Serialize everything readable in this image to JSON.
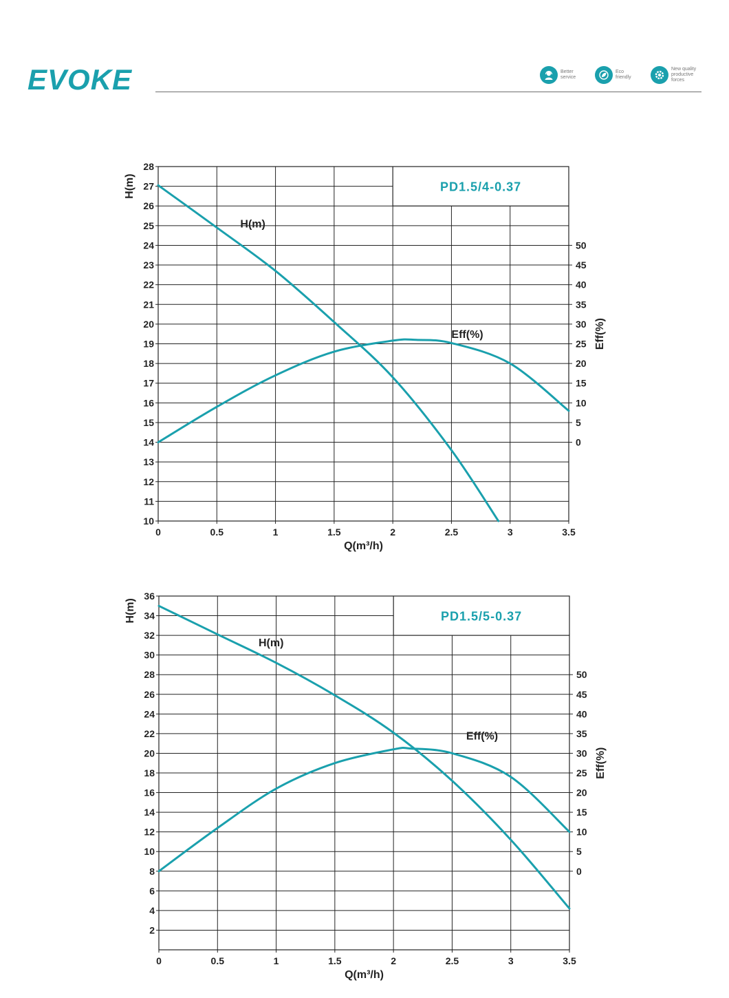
{
  "header": {
    "logo": "EVOKE",
    "badges": [
      {
        "icon": "headset-person-icon",
        "line1": "Better",
        "line2": "service",
        "line3": ""
      },
      {
        "icon": "eco-leaf-icon",
        "line1": "Eco",
        "line2": "friendly",
        "line3": ""
      },
      {
        "icon": "gear-icon",
        "line1": "New quality",
        "line2": "productive",
        "line3": "forces"
      }
    ]
  },
  "colors": {
    "accent": "#1aa0ad",
    "grid": "#222222",
    "text": "#222222"
  },
  "chart_data": [
    {
      "type": "line",
      "title": "PD1.5/4-0.37",
      "xlabel": "Q(m³/h)",
      "ylabel": "H(m)",
      "y2label": "Eff(%)",
      "xlim": [
        0,
        3.5
      ],
      "ylim": [
        10,
        28
      ],
      "y2ticks": [
        0,
        5,
        10,
        15,
        20,
        25,
        30,
        35,
        40,
        45,
        50
      ],
      "x_ticks": [
        "0",
        "0.5",
        "1",
        "1.5",
        "2",
        "2.5",
        "3",
        "3.5"
      ],
      "y_ticks": [
        "10",
        "11",
        "12",
        "13",
        "14",
        "15",
        "16",
        "17",
        "18",
        "19",
        "20",
        "21",
        "22",
        "23",
        "24",
        "25",
        "26",
        "27",
        "28"
      ],
      "grid": true,
      "series": [
        {
          "name": "H(m)",
          "axis": "left",
          "x": [
            0,
            0.5,
            1,
            1.5,
            2,
            2.5,
            2.9
          ],
          "y": [
            27.05,
            24.9,
            22.7,
            20.1,
            17.3,
            13.6,
            10
          ]
        },
        {
          "name": "Eff(%)",
          "axis": "right",
          "x": [
            0,
            0.5,
            1,
            1.5,
            2,
            2.2,
            2.5,
            3,
            3.5
          ],
          "y": [
            0,
            9,
            17,
            23,
            25.8,
            26,
            25.2,
            20,
            8
          ]
        }
      ]
    },
    {
      "type": "line",
      "title": "PD1.5/5-0.37",
      "xlabel": "Q(m³/h)",
      "ylabel": "H(m)",
      "y2label": "Eff(%)",
      "xlim": [
        0,
        3.5
      ],
      "ylim": [
        0,
        36
      ],
      "y2ticks": [
        0,
        5,
        10,
        15,
        20,
        25,
        30,
        35,
        40,
        45,
        50
      ],
      "x_ticks": [
        "0",
        "0.5",
        "1",
        "1.5",
        "2",
        "2.5",
        "3",
        "3.5"
      ],
      "y_ticks": [
        "2",
        "4",
        "6",
        "8",
        "10",
        "12",
        "14",
        "16",
        "18",
        "20",
        "22",
        "24",
        "26",
        "28",
        "30",
        "32",
        "34",
        "36"
      ],
      "grid": true,
      "series": [
        {
          "name": "H(m)",
          "axis": "left",
          "x": [
            0,
            0.5,
            1,
            1.5,
            2,
            2.5,
            3,
            3.5
          ],
          "y": [
            35,
            32.1,
            29.2,
            25.9,
            22.1,
            17.2,
            11.2,
            4.2
          ]
        },
        {
          "name": "Eff(%)",
          "axis": "right",
          "x": [
            0,
            0.5,
            1,
            1.5,
            2,
            2.15,
            2.5,
            3,
            3.5
          ],
          "y": [
            0,
            11,
            21,
            27.5,
            31,
            31.2,
            30,
            24,
            10
          ]
        }
      ]
    }
  ]
}
